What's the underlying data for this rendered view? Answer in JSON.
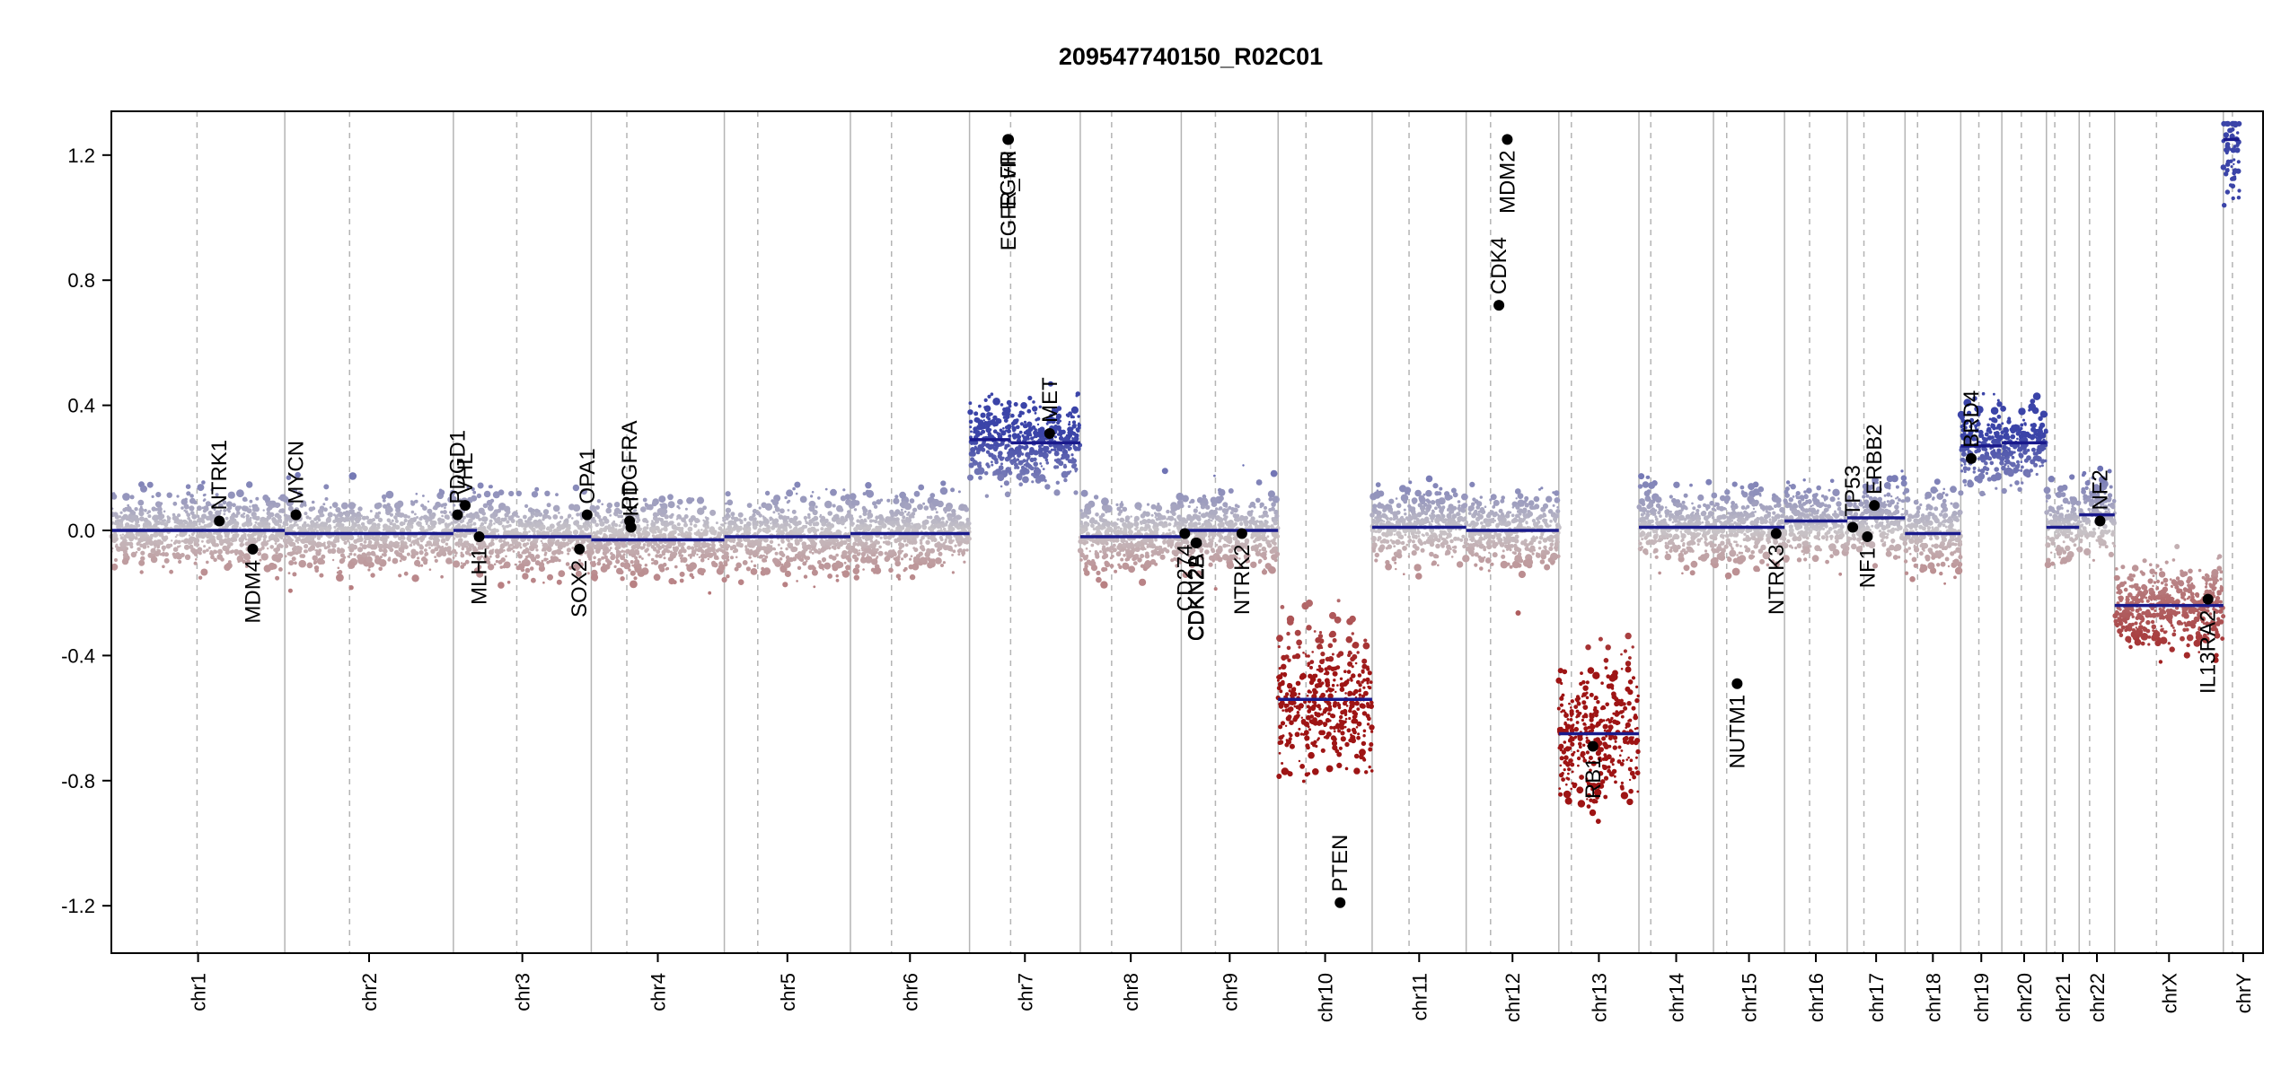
{
  "chart_data": {
    "type": "scatter",
    "title": "209547740150_R02C01",
    "xlabel": "",
    "ylabel": "",
    "ylim": [
      -1.35,
      1.35
    ],
    "y_ticks": [
      {
        "value": 1.2,
        "label": "1.2"
      },
      {
        "value": 0.8,
        "label": "0.8"
      },
      {
        "value": 0.4,
        "label": "0.4"
      },
      {
        "value": 0.0,
        "label": "0.0"
      },
      {
        "value": -0.4,
        "label": "-0.4"
      },
      {
        "value": -0.8,
        "label": "-0.8"
      },
      {
        "value": -1.2,
        "label": "-1.2"
      }
    ],
    "grid": false,
    "colors": {
      "gain": "#3b44a8",
      "neutral": "#c8c4c8",
      "loss": "#9e1414",
      "segment": "#1a1a8c",
      "gene": "#000000",
      "boundary": "#b4b4b4"
    },
    "chromosomes": [
      {
        "name": "chr1",
        "start": 0,
        "end": 249,
        "centromere": 123,
        "segments": [
          {
            "start": 0,
            "end": 249,
            "value": 0.0
          }
        ]
      },
      {
        "name": "chr2",
        "start": 249,
        "end": 491,
        "centromere": 342,
        "segments": [
          {
            "start": 249,
            "end": 491,
            "value": -0.01
          }
        ]
      },
      {
        "name": "chr3",
        "start": 491,
        "end": 689,
        "centromere": 582,
        "segments": [
          {
            "start": 491,
            "end": 525,
            "value": 0.0
          },
          {
            "start": 525,
            "end": 689,
            "value": -0.02
          }
        ]
      },
      {
        "name": "chr4",
        "start": 689,
        "end": 880,
        "centromere": 740,
        "segments": [
          {
            "start": 689,
            "end": 880,
            "value": -0.03
          }
        ]
      },
      {
        "name": "chr5",
        "start": 880,
        "end": 1061,
        "centromere": 928,
        "segments": [
          {
            "start": 880,
            "end": 1061,
            "value": -0.02
          }
        ]
      },
      {
        "name": "chr6",
        "start": 1061,
        "end": 1232,
        "centromere": 1120,
        "segments": [
          {
            "start": 1061,
            "end": 1232,
            "value": -0.01
          }
        ]
      },
      {
        "name": "chr7",
        "start": 1232,
        "end": 1391,
        "centromere": 1291,
        "segments": [
          {
            "start": 1232,
            "end": 1291,
            "value": 0.29
          },
          {
            "start": 1291,
            "end": 1391,
            "value": 0.28
          }
        ]
      },
      {
        "name": "chr8",
        "start": 1391,
        "end": 1536,
        "centromere": 1436,
        "segments": [
          {
            "start": 1391,
            "end": 1536,
            "value": -0.02
          }
        ]
      },
      {
        "name": "chr9",
        "start": 1536,
        "end": 1675,
        "centromere": 1585,
        "segments": [
          {
            "start": 1536,
            "end": 1675,
            "value": 0.0
          }
        ]
      },
      {
        "name": "chr10",
        "start": 1675,
        "end": 1810,
        "centromere": 1715,
        "segments": [
          {
            "start": 1675,
            "end": 1810,
            "value": -0.54
          }
        ]
      },
      {
        "name": "chr11",
        "start": 1810,
        "end": 1945,
        "centromere": 1863,
        "segments": [
          {
            "start": 1810,
            "end": 1945,
            "value": 0.01
          }
        ]
      },
      {
        "name": "chr12",
        "start": 1945,
        "end": 2078,
        "centromere": 1980,
        "segments": [
          {
            "start": 1945,
            "end": 1995,
            "value": 0.0
          },
          {
            "start": 1995,
            "end": 2078,
            "value": 0.0
          }
        ]
      },
      {
        "name": "chr13",
        "start": 2078,
        "end": 2193,
        "centromere": 2096,
        "segments": [
          {
            "start": 2078,
            "end": 2193,
            "value": -0.65
          }
        ]
      },
      {
        "name": "chr14",
        "start": 2193,
        "end": 2300,
        "centromere": 2210,
        "segments": [
          {
            "start": 2193,
            "end": 2300,
            "value": 0.01
          }
        ]
      },
      {
        "name": "chr15",
        "start": 2300,
        "end": 2402,
        "centromere": 2319,
        "segments": [
          {
            "start": 2300,
            "end": 2402,
            "value": 0.01
          }
        ]
      },
      {
        "name": "chr16",
        "start": 2402,
        "end": 2492,
        "centromere": 2438,
        "segments": [
          {
            "start": 2402,
            "end": 2492,
            "value": 0.03
          }
        ]
      },
      {
        "name": "chr17",
        "start": 2492,
        "end": 2575,
        "centromere": 2516,
        "segments": [
          {
            "start": 2492,
            "end": 2575,
            "value": 0.04
          }
        ]
      },
      {
        "name": "chr18",
        "start": 2575,
        "end": 2655,
        "centromere": 2593,
        "segments": [
          {
            "start": 2575,
            "end": 2655,
            "value": -0.01
          }
        ]
      },
      {
        "name": "chr19",
        "start": 2655,
        "end": 2714,
        "centromere": 2681,
        "segments": [
          {
            "start": 2655,
            "end": 2714,
            "value": 0.27
          }
        ]
      },
      {
        "name": "chr20",
        "start": 2714,
        "end": 2778,
        "centromere": 2742,
        "segments": [
          {
            "start": 2714,
            "end": 2778,
            "value": 0.28
          }
        ]
      },
      {
        "name": "chr21",
        "start": 2778,
        "end": 2825,
        "centromere": 2790,
        "segments": [
          {
            "start": 2778,
            "end": 2825,
            "value": 0.01
          }
        ]
      },
      {
        "name": "chr22",
        "start": 2825,
        "end": 2876,
        "centromere": 2840,
        "segments": [
          {
            "start": 2825,
            "end": 2876,
            "value": 0.05
          }
        ]
      },
      {
        "name": "chrX",
        "start": 2876,
        "end": 3032,
        "centromere": 2936,
        "segments": [
          {
            "start": 2876,
            "end": 3032,
            "value": -0.24
          }
        ]
      },
      {
        "name": "chrY",
        "start": 3032,
        "end": 3089,
        "centromere": 3045,
        "segments": [
          {
            "start": 3032,
            "end": 3055,
            "value": 1.25
          }
        ]
      }
    ],
    "genes": [
      {
        "name": "NTRK1",
        "pos": 155,
        "value": 0.03,
        "label_side": "above"
      },
      {
        "name": "MDM4",
        "pos": 203,
        "value": -0.06,
        "label_side": "below"
      },
      {
        "name": "MYCN",
        "pos": 265,
        "value": 0.05,
        "label_side": "above"
      },
      {
        "name": "PDGD1",
        "pos": 497,
        "value": 0.05,
        "label_side": "above"
      },
      {
        "name": "VHL",
        "pos": 508,
        "value": 0.08,
        "label_side": "above"
      },
      {
        "name": "MLH1",
        "pos": 528,
        "value": -0.02,
        "label_side": "below"
      },
      {
        "name": "SOX2",
        "pos": 672,
        "value": -0.06,
        "label_side": "below"
      },
      {
        "name": "OPA1",
        "pos": 683,
        "value": 0.05,
        "label_side": "above"
      },
      {
        "name": "PDGFRA",
        "pos": 744,
        "value": 0.03,
        "label_side": "above"
      },
      {
        "name": "KIT",
        "pos": 746,
        "value": 0.01,
        "label_side": "above"
      },
      {
        "name": "EGFR",
        "pos": 1287,
        "value": 1.25,
        "label_side": "below"
      },
      {
        "name": "EGFR_vIII",
        "pos": 1288,
        "value": 1.25,
        "label_side": "below"
      },
      {
        "name": "MET",
        "pos": 1347,
        "value": 0.31,
        "label_side": "above"
      },
      {
        "name": "CD274",
        "pos": 1541,
        "value": -0.01,
        "label_side": "below"
      },
      {
        "name": "CDKN2A",
        "pos": 1557,
        "value": -0.04,
        "label_side": "below"
      },
      {
        "name": "CDKN2B",
        "pos": 1558,
        "value": -0.04,
        "label_side": "below"
      },
      {
        "name": "NTRK2",
        "pos": 1623,
        "value": -0.01,
        "label_side": "below"
      },
      {
        "name": "PTEN",
        "pos": 1764,
        "value": -1.19,
        "label_side": "above"
      },
      {
        "name": "CDK4",
        "pos": 1992,
        "value": 0.72,
        "label_side": "above"
      },
      {
        "name": "MDM2",
        "pos": 2004,
        "value": 1.25,
        "label_side": "below"
      },
      {
        "name": "RB1",
        "pos": 2127,
        "value": -0.69,
        "label_side": "below"
      },
      {
        "name": "NUTM1",
        "pos": 2334,
        "value": -0.49,
        "label_side": "below"
      },
      {
        "name": "NTRK3",
        "pos": 2390,
        "value": -0.01,
        "label_side": "below"
      },
      {
        "name": "TP53",
        "pos": 2500,
        "value": 0.01,
        "label_side": "above"
      },
      {
        "name": "NF1",
        "pos": 2521,
        "value": -0.02,
        "label_side": "below"
      },
      {
        "name": "ERBB2",
        "pos": 2531,
        "value": 0.08,
        "label_side": "above"
      },
      {
        "name": "BRD4",
        "pos": 2670,
        "value": 0.23,
        "label_side": "above"
      },
      {
        "name": "NF2",
        "pos": 2855,
        "value": 0.03,
        "label_side": "above"
      },
      {
        "name": "IL13RA2",
        "pos": 3010,
        "value": -0.22,
        "label_side": "below"
      }
    ]
  }
}
